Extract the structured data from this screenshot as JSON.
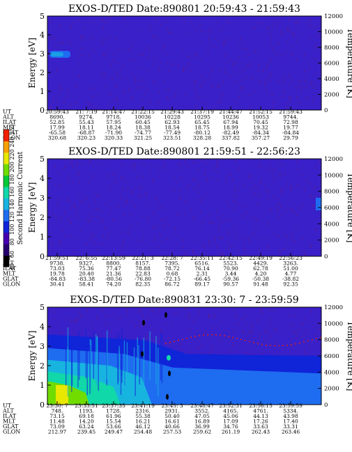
{
  "colors": {
    "background": "#3a20c8",
    "grain": "#6a1e82",
    "colorbar": [
      "#000000",
      "#26006e",
      "#4400b0",
      "#1024d8",
      "#1e6cf0",
      "#18b4e0",
      "#10d8a8",
      "#00c838",
      "#70dc00",
      "#e8e800",
      "#f8a000",
      "#f02000"
    ]
  },
  "chart_data": [
    {
      "type": "heatmap",
      "title": "EXOS-D/TED   Date:890801  20:59:43 - 21:59:43",
      "ylabel": "Energy [eV]",
      "y2label": "Temperature [K]",
      "ylim": [
        0,
        5
      ],
      "yticks": [
        "0",
        "1",
        "2",
        "3",
        "4",
        "5"
      ],
      "y2lim": [
        0,
        12000
      ],
      "y2ticks": [
        "0",
        "2000",
        "4000",
        "6000",
        "8000",
        "10000",
        "12000"
      ],
      "time_table": {
        "labels": [
          "UT",
          "ALT",
          "ILAT",
          "MLT",
          "GLAT",
          "GLON"
        ],
        "columns": [
          [
            "20:59:43",
            "8690.",
            "52.85",
            "17.99",
            "-65.58",
            "320.68"
          ],
          [
            "21: 7:19",
            "9274.",
            "55.43",
            "18.11",
            "-68.87",
            "320.23"
          ],
          [
            "21:14:47",
            "9718.",
            "57.95",
            "18.24",
            "-71.90",
            "320.33"
          ],
          [
            "21:22:15",
            "10036",
            "60.45",
            "18.38",
            "-74.77",
            "321.25"
          ],
          [
            "21:29:43",
            "10228",
            "62.93",
            "18.54",
            "-77.49",
            "323.51"
          ],
          [
            "21:37:19",
            "10295",
            "65.45",
            "18.75",
            "-80.12",
            "328.28"
          ],
          [
            "21:44:47",
            "10236",
            "67.94",
            "18.99",
            "-82.49",
            "337.82"
          ],
          [
            "21:52:15",
            "10053",
            "70.45",
            "19.32",
            "-84.34",
            "357.27"
          ],
          [
            "21:59:43",
            "9744.",
            "72.98",
            "19.77",
            "-84.84",
            "29.79"
          ]
        ]
      }
    },
    {
      "type": "heatmap",
      "title": "EXOS-D/TED   Date:890801  21:59:51 - 22:56:23",
      "ylabel": "Energy [eV]",
      "y2label": "Temperature [K]",
      "ylim": [
        0,
        5
      ],
      "yticks": [
        "0",
        "1",
        "2",
        "3",
        "4",
        "5"
      ],
      "y2lim": [
        0,
        12000
      ],
      "y2ticks": [
        "0",
        "2000",
        "4000",
        "6000",
        "8000",
        "10000",
        "12000"
      ],
      "time_table": {
        "labels": [
          "UT",
          "ALT",
          "ILAT",
          "MLT",
          "GLAT",
          "GLON"
        ],
        "columns": [
          [
            "21:59:51",
            "9738.",
            "73.03",
            "19.78",
            "-84.83",
            "30.41"
          ],
          [
            "22: 6:55",
            "9327.",
            "75.36",
            "20.40",
            "-83.38",
            "58.41"
          ],
          [
            "22:13:59",
            "8800.",
            "77.47",
            "21.36",
            "-80.56",
            "74.20"
          ],
          [
            "22:21: 3",
            "8157.",
            "78.88",
            "22.83",
            "-76.80",
            "82.35"
          ],
          [
            "22:28: 7",
            "7395.",
            "78.72",
            "0.68",
            "-72.15",
            "86.72"
          ],
          [
            "22:35:11",
            "6516.",
            "76.14",
            "2.31",
            "-66.45",
            "89.17"
          ],
          [
            "22:42:15",
            "5523.",
            "70.90",
            "3.44",
            "-59.36",
            "90.57"
          ],
          [
            "22:49:19",
            "4429.",
            "62.78",
            "4.20",
            "-50.38",
            "91.48"
          ],
          [
            "22:56:23",
            "3263.",
            "51.00",
            "4.77",
            "-38.82",
            "92.35"
          ]
        ]
      }
    },
    {
      "type": "heatmap",
      "title": "EXOS-D/TED   Date:890831  23:30: 7 - 23:59:59",
      "ylabel": "Energy [eV]",
      "y2label": "Temperature [K]",
      "ylim": [
        0,
        5
      ],
      "yticks": [
        "0",
        "1",
        "2",
        "3",
        "4",
        "5"
      ],
      "y2lim": [
        0,
        12000
      ],
      "y2ticks": [
        "0",
        "2000",
        "4000",
        "6000",
        "8000",
        "10000",
        "12000"
      ],
      "time_table": {
        "labels": [
          "UT",
          "ALT",
          "ILAT",
          "MLT",
          "GLAT",
          "GLON"
        ],
        "columns": [
          [
            "23:30: 7",
            "748.",
            "73.15",
            "11.48",
            "73.09",
            "212.97"
          ],
          [
            "23:33:51",
            "1193.",
            "69.18",
            "14.20",
            "63.24",
            "239.45"
          ],
          [
            "23:37:35",
            "1728.",
            "61.96",
            "15.54",
            "53.66",
            "249.47"
          ],
          [
            "23:41:19",
            "2316.",
            "55.38",
            "16.21",
            "46.12",
            "254.48"
          ],
          [
            "23:45: 3",
            "2931.",
            "50.40",
            "16.61",
            "40.66",
            "257.53"
          ],
          [
            "23:48:47",
            "3552.",
            "47.05",
            "16.89",
            "36.99",
            "259.62"
          ],
          [
            "23:52:31",
            "4165.",
            "45.06",
            "17.09",
            "34.76",
            "261.19"
          ],
          [
            "23:56:15",
            "4761.",
            "44.13",
            "17.26",
            "33.63",
            "262.43"
          ],
          [
            "23:59:59",
            "5334.",
            "43.98",
            "17.40",
            "33.31",
            "263.46"
          ]
        ]
      }
    }
  ],
  "colorbar": {
    "label": "Second Harmonic Current",
    "ticks": [
      "40",
      "60",
      "80",
      "100",
      "120",
      "140",
      "160",
      "180",
      "200",
      "220",
      "240",
      "250"
    ]
  }
}
